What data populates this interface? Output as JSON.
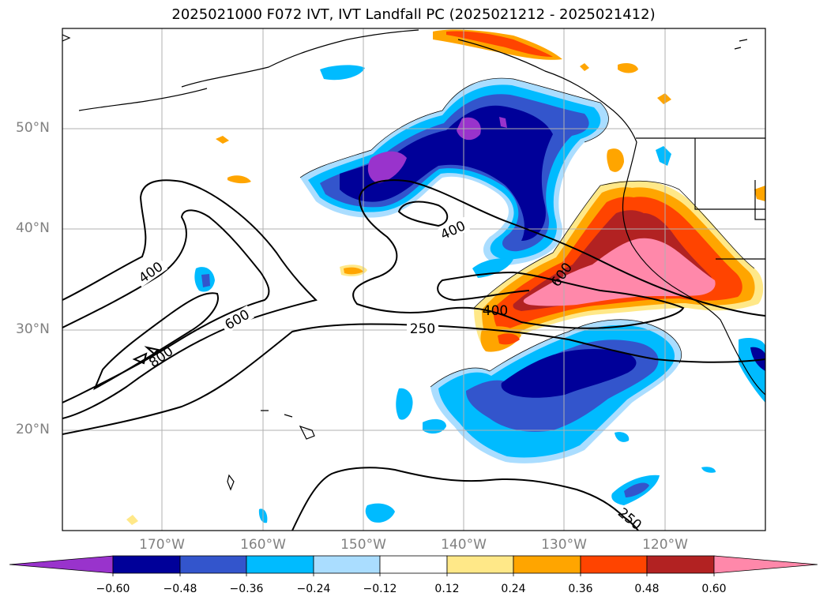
{
  "title": "2025021000 F072 IVT, IVT Landfall PC (2025021212 - 2025021412)",
  "lat_labels": [
    "50°N",
    "40°N",
    "30°N",
    "20°N"
  ],
  "lon_labels": [
    "170°W",
    "160°W",
    "150°W",
    "140°W",
    "130°W",
    "120°W"
  ],
  "contour_labels": [
    "400",
    "400",
    "600",
    "600",
    "400",
    "250",
    "800",
    "250"
  ],
  "colorbar": {
    "tick_labels": [
      "−0.60",
      "−0.48",
      "−0.36",
      "−0.24",
      "−0.12",
      "0.12",
      "0.24",
      "0.36",
      "0.48",
      "0.60"
    ],
    "colors": [
      "#9933cc",
      "#000099",
      "#3355cc",
      "#00bbff",
      "#aaddff",
      "#ffffff",
      "#ffe888",
      "#ffa500",
      "#ff4400",
      "#b22222",
      "#ff88aa",
      "#ff88aa"
    ]
  }
}
